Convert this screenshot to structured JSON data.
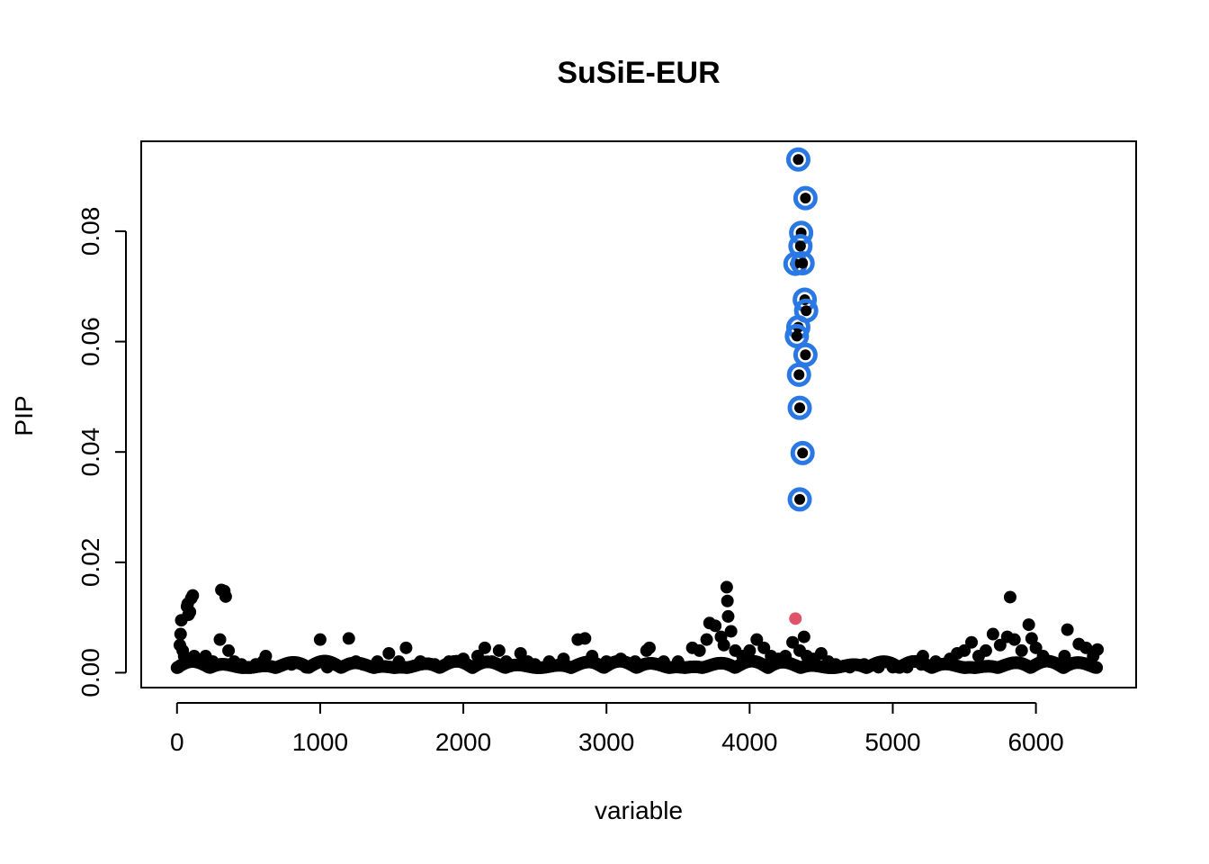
{
  "chart_data": {
    "type": "scatter",
    "title": "SuSiE-EUR",
    "xlabel": "variable",
    "ylabel": "PIP",
    "xlim": [
      -250,
      6700
    ],
    "ylim": [
      -0.0027,
      0.0963
    ],
    "x_ticks": [
      0,
      1000,
      2000,
      3000,
      4000,
      5000,
      6000
    ],
    "x_tick_labels": [
      "0",
      "1000",
      "2000",
      "3000",
      "4000",
      "5000",
      "6000"
    ],
    "y_ticks": [
      0.0,
      0.02,
      0.04,
      0.06,
      0.08
    ],
    "y_tick_labels": [
      "0.00",
      "0.02",
      "0.04",
      "0.06",
      "0.08"
    ],
    "grid": false,
    "colors": {
      "points": "#000000",
      "credible_set_ring": "#2a78e4",
      "highlight_point": "#df536b",
      "axis": "#000000"
    },
    "series": [
      {
        "points": [
          [
            10,
            0.001
          ],
          [
            20,
            0.005
          ],
          [
            25,
            0.007
          ],
          [
            30,
            0.0095
          ],
          [
            40,
            0.004
          ],
          [
            50,
            0.003
          ],
          [
            60,
            0.002
          ],
          [
            70,
            0.012
          ],
          [
            75,
            0.0125
          ],
          [
            80,
            0.0105
          ],
          [
            90,
            0.011
          ],
          [
            100,
            0.0135
          ],
          [
            110,
            0.014
          ],
          [
            120,
            0.003
          ],
          [
            150,
            0.002
          ],
          [
            200,
            0.003
          ],
          [
            250,
            0.002
          ],
          [
            300,
            0.006
          ],
          [
            310,
            0.015
          ],
          [
            330,
            0.0148
          ],
          [
            340,
            0.0138
          ],
          [
            360,
            0.004
          ],
          [
            400,
            0.002
          ],
          [
            450,
            0.0015
          ],
          [
            500,
            0.001
          ],
          [
            550,
            0.0015
          ],
          [
            600,
            0.002
          ],
          [
            620,
            0.003
          ],
          [
            700,
            0.001
          ],
          [
            800,
            0.0015
          ],
          [
            900,
            0.001
          ],
          [
            1000,
            0.006
          ],
          [
            1050,
            0.001
          ],
          [
            1100,
            0.0015
          ],
          [
            1200,
            0.0062
          ],
          [
            1250,
            0.002
          ],
          [
            1300,
            0.0015
          ],
          [
            1400,
            0.002
          ],
          [
            1480,
            0.0035
          ],
          [
            1550,
            0.002
          ],
          [
            1600,
            0.0045
          ],
          [
            1700,
            0.002
          ],
          [
            1800,
            0.0015
          ],
          [
            1900,
            0.002
          ],
          [
            2000,
            0.0025
          ],
          [
            2100,
            0.003
          ],
          [
            2150,
            0.0045
          ],
          [
            2200,
            0.002
          ],
          [
            2250,
            0.004
          ],
          [
            2300,
            0.002
          ],
          [
            2400,
            0.0035
          ],
          [
            2450,
            0.002
          ],
          [
            2500,
            0.0015
          ],
          [
            2600,
            0.002
          ],
          [
            2700,
            0.0025
          ],
          [
            2800,
            0.006
          ],
          [
            2850,
            0.0062
          ],
          [
            2900,
            0.003
          ],
          [
            3000,
            0.002
          ],
          [
            3100,
            0.0025
          ],
          [
            3200,
            0.002
          ],
          [
            3280,
            0.004
          ],
          [
            3300,
            0.0045
          ],
          [
            3400,
            0.002
          ],
          [
            3500,
            0.002
          ],
          [
            3600,
            0.0045
          ],
          [
            3650,
            0.004
          ],
          [
            3700,
            0.006
          ],
          [
            3720,
            0.009
          ],
          [
            3760,
            0.0085
          ],
          [
            3800,
            0.0065
          ],
          [
            3820,
            0.005
          ],
          [
            3840,
            0.0155
          ],
          [
            3845,
            0.013
          ],
          [
            3850,
            0.0102
          ],
          [
            3870,
            0.0075
          ],
          [
            3900,
            0.004
          ],
          [
            3950,
            0.003
          ],
          [
            4000,
            0.004
          ],
          [
            4050,
            0.006
          ],
          [
            4100,
            0.0045
          ],
          [
            4150,
            0.003
          ],
          [
            4200,
            0.0025
          ],
          [
            4250,
            0.003
          ],
          [
            4300,
            0.0055
          ],
          [
            4350,
            0.004
          ],
          [
            4380,
            0.0065
          ],
          [
            4400,
            0.003
          ],
          [
            4450,
            0.0025
          ],
          [
            4500,
            0.0035
          ],
          [
            4550,
            0.002
          ],
          [
            4600,
            0.0015
          ],
          [
            4700,
            0.001
          ],
          [
            4800,
            0.0015
          ],
          [
            4900,
            0.001
          ],
          [
            5000,
            0.001
          ],
          [
            5100,
            0.001
          ],
          [
            5200,
            0.0015
          ],
          [
            5210,
            0.003
          ],
          [
            5300,
            0.002
          ],
          [
            5400,
            0.0025
          ],
          [
            5450,
            0.0035
          ],
          [
            5500,
            0.004
          ],
          [
            5550,
            0.0055
          ],
          [
            5600,
            0.003
          ],
          [
            5650,
            0.004
          ],
          [
            5700,
            0.007
          ],
          [
            5750,
            0.005
          ],
          [
            5800,
            0.0065
          ],
          [
            5820,
            0.0137
          ],
          [
            5850,
            0.006
          ],
          [
            5900,
            0.004
          ],
          [
            5950,
            0.0087
          ],
          [
            5970,
            0.0062
          ],
          [
            6000,
            0.0045
          ],
          [
            6050,
            0.003
          ],
          [
            6100,
            0.002
          ],
          [
            6200,
            0.003
          ],
          [
            6220,
            0.0078
          ],
          [
            6300,
            0.0052
          ],
          [
            6350,
            0.0045
          ],
          [
            6400,
            0.003
          ],
          [
            6430,
            0.0042
          ]
        ]
      },
      {
        "name": "",
        "credible_set": true,
        "points": [
          [
            4340,
            0.093
          ],
          [
            4390,
            0.086
          ],
          [
            4360,
            0.0797
          ],
          [
            4355,
            0.0773
          ],
          [
            4320,
            0.0741
          ],
          [
            4370,
            0.0742
          ],
          [
            4385,
            0.0676
          ],
          [
            4395,
            0.0656
          ],
          [
            4340,
            0.0626
          ],
          [
            4330,
            0.061
          ],
          [
            4390,
            0.0576
          ],
          [
            4345,
            0.054
          ],
          [
            4350,
            0.048
          ],
          [
            4370,
            0.0398
          ],
          [
            4350,
            0.0314
          ]
        ]
      },
      {
        "name": "",
        "highlight": true,
        "points": [
          [
            4320,
            0.0098
          ]
        ]
      }
    ]
  }
}
